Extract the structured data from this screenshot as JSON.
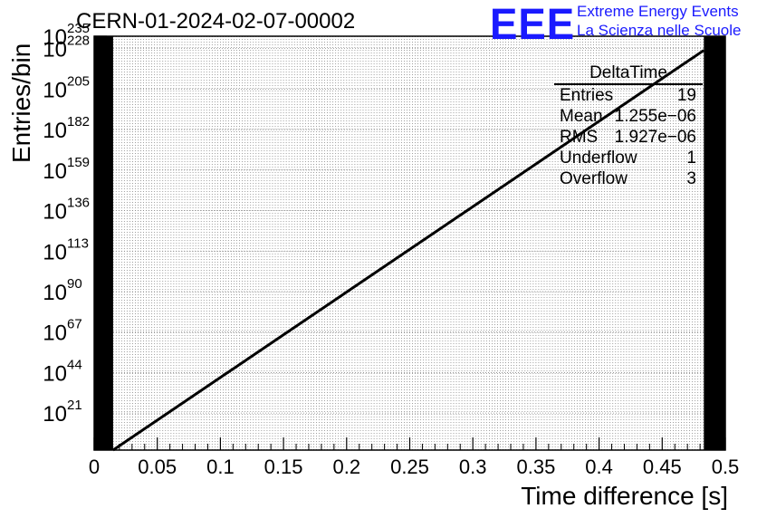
{
  "run_title": "CERN-01-2024-02-07-00002",
  "logo": {
    "mark": "EEE",
    "line1": "Extreme Energy Events",
    "line2": "La Scienza nelle Scuole",
    "color": "#1a1aff"
  },
  "stats_box": {
    "name": "DeltaTime",
    "rows": [
      {
        "label": "Entries",
        "value": "19"
      },
      {
        "label": "Mean",
        "value": "1.255e−06"
      },
      {
        "label": "RMS",
        "value": "1.927e−06"
      },
      {
        "label": "Underflow",
        "value": "1"
      },
      {
        "label": "Overflow",
        "value": "3"
      }
    ]
  },
  "chart_data": {
    "type": "line",
    "xlabel": "Time difference [s]",
    "ylabel": "Entries/bin",
    "xlim": [
      0,
      0.5
    ],
    "ylim_log10": [
      0,
      235
    ],
    "y_scale": "log",
    "x_ticks": [
      "0",
      "0.05",
      "0.1",
      "0.15",
      "0.2",
      "0.25",
      "0.3",
      "0.35",
      "0.4",
      "0.45",
      "0.5"
    ],
    "y_tick_exponents": [
      21,
      44,
      67,
      90,
      113,
      136,
      159,
      182,
      205,
      228,
      235
    ],
    "grid": true,
    "series": [
      {
        "x": [
          0.015,
          0.483
        ],
        "y_log10": [
          0,
          227
        ],
        "color": "#000000"
      }
    ],
    "filled_bins_x": [
      [
        0,
        0.015
      ],
      [
        0.483,
        0.5
      ]
    ]
  }
}
